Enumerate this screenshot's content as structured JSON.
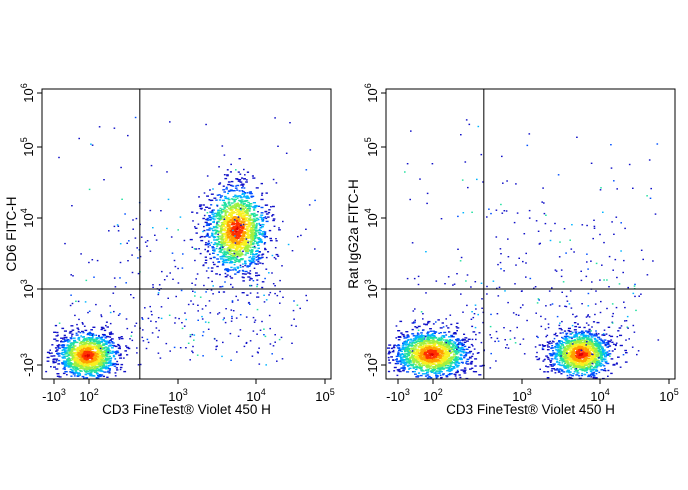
{
  "colors": {
    "background": "#ffffff",
    "axis": "#000000",
    "density_scale": [
      "#1010c8",
      "#0050ff",
      "#00b4ff",
      "#20e0a0",
      "#a0f040",
      "#f8f020",
      "#ffa000",
      "#ff3000",
      "#e00000"
    ]
  },
  "chart_data": [
    {
      "type": "scatter",
      "subtype": "flow-cytometry-density-dot-plot",
      "title": "",
      "xlabel": "CD3 FineTest® Violet 450 H",
      "ylabel": "CD6 FITC-H",
      "x_scale": "biexponential",
      "y_scale": "biexponential",
      "x_ticks": [
        {
          "base": "-10",
          "exp": "3"
        },
        {
          "base": "10",
          "exp": "2"
        },
        {
          "base": "10",
          "exp": "3"
        },
        {
          "base": "10",
          "exp": "4"
        },
        {
          "base": "10",
          "exp": "5"
        }
      ],
      "y_ticks": [
        {
          "base": "-10",
          "exp": "3"
        },
        {
          "base": "10",
          "exp": "3"
        },
        {
          "base": "10",
          "exp": "4"
        },
        {
          "base": "10",
          "exp": "5"
        },
        {
          "base": "10",
          "exp": "6"
        }
      ],
      "gate": {
        "x": 400,
        "y": 1000
      },
      "populations": [
        {
          "x": 60,
          "y": -400,
          "sx": 0.09,
          "sy": 0.07,
          "n": 1300
        },
        {
          "x": 5500,
          "y": 7000,
          "sx": 0.09,
          "sy": 0.13,
          "n": 1500
        }
      ],
      "background_events": 420,
      "grid": false,
      "legend": "none"
    },
    {
      "type": "scatter",
      "subtype": "flow-cytometry-density-dot-plot",
      "title": "",
      "xlabel": "CD3 FineTest® Violet 450 H",
      "ylabel": "Rat IgG2a FITC-H",
      "x_scale": "biexponential",
      "y_scale": "biexponential",
      "x_ticks": [
        {
          "base": "-10",
          "exp": "3"
        },
        {
          "base": "10",
          "exp": "2"
        },
        {
          "base": "10",
          "exp": "3"
        },
        {
          "base": "10",
          "exp": "4"
        },
        {
          "base": "10",
          "exp": "5"
        }
      ],
      "y_ticks": [
        {
          "base": "-10",
          "exp": "3"
        },
        {
          "base": "10",
          "exp": "3"
        },
        {
          "base": "10",
          "exp": "4"
        },
        {
          "base": "10",
          "exp": "5"
        },
        {
          "base": "10",
          "exp": "6"
        }
      ],
      "gate": {
        "x": 400,
        "y": 1000
      },
      "populations": [
        {
          "x": 60,
          "y": -350,
          "sx": 0.11,
          "sy": 0.07,
          "n": 1500
        },
        {
          "x": 5500,
          "y": -350,
          "sx": 0.09,
          "sy": 0.07,
          "n": 1300
        }
      ],
      "background_events": 380,
      "grid": false,
      "legend": "none"
    }
  ]
}
